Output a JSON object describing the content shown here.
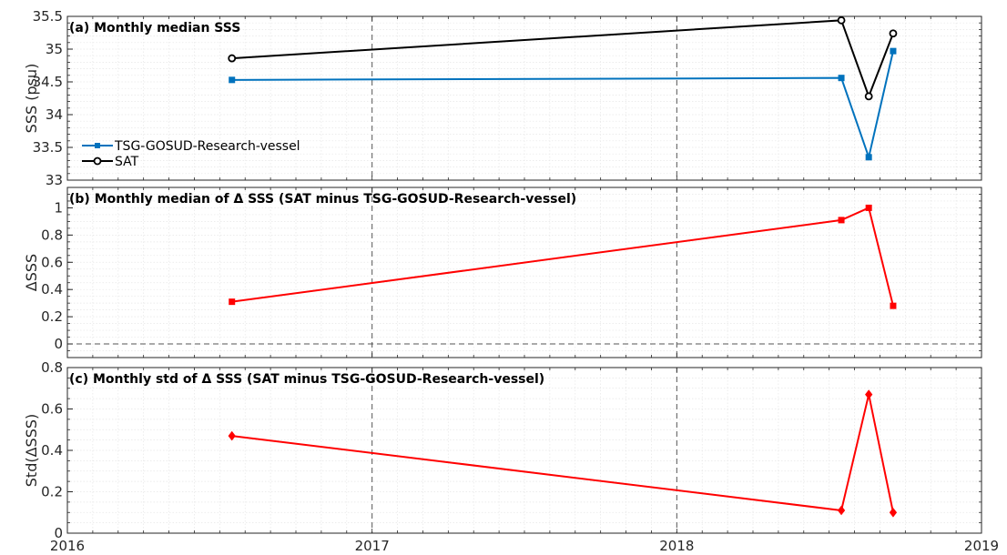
{
  "chart_data": [
    {
      "type": "line",
      "title": "(a) Monthly median SSS",
      "ylabel": "SSS (psu)",
      "ylim": [
        33,
        35.5
      ],
      "yticks": [
        "33",
        "33.5",
        "34",
        "34.5",
        "35",
        "35.5"
      ],
      "xlim": [
        2016,
        2019
      ],
      "xticks": [
        "2016",
        "2017",
        "2018",
        "2019"
      ],
      "x": [
        2016.54,
        2018.54,
        2018.63,
        2018.71
      ],
      "grid": true,
      "legend_position": "lower-left",
      "series": [
        {
          "name": "TSG-GOSUD-Research-vessel",
          "values": [
            34.53,
            34.56,
            33.35,
            34.97
          ],
          "color": "#0072bd",
          "marker": "square"
        },
        {
          "name": "SAT",
          "values": [
            34.86,
            35.44,
            34.28,
            35.24
          ],
          "color": "#000000",
          "marker": "circle"
        }
      ]
    },
    {
      "type": "line",
      "title": "(b) Monthly median of Δ SSS (SAT minus TSG-GOSUD-Research-vessel)",
      "ylabel": "ΔSSS",
      "ylim": [
        -0.1,
        1.15
      ],
      "yticks": [
        "0",
        "0.2",
        "0.4",
        "0.6",
        "0.8",
        "1"
      ],
      "xlim": [
        2016,
        2019
      ],
      "x": [
        2016.54,
        2018.54,
        2018.63,
        2018.71
      ],
      "grid": true,
      "series": [
        {
          "values": [
            0.31,
            0.91,
            1.0,
            0.28
          ],
          "color": "#ff0000",
          "marker": "square"
        }
      ]
    },
    {
      "type": "line",
      "title": "(c) Monthly std of Δ SSS (SAT minus TSG-GOSUD-Research-vessel)",
      "ylabel": "Std(ΔSSS)",
      "ylim": [
        0,
        0.8
      ],
      "yticks": [
        "0",
        "0.2",
        "0.4",
        "0.6",
        "0.8"
      ],
      "xlim": [
        2016,
        2019
      ],
      "x": [
        2016.54,
        2018.54,
        2018.63,
        2018.71
      ],
      "grid": true,
      "series": [
        {
          "values": [
            0.47,
            0.11,
            0.67,
            0.1
          ],
          "color": "#ff0000",
          "marker": "diamond"
        }
      ]
    }
  ]
}
